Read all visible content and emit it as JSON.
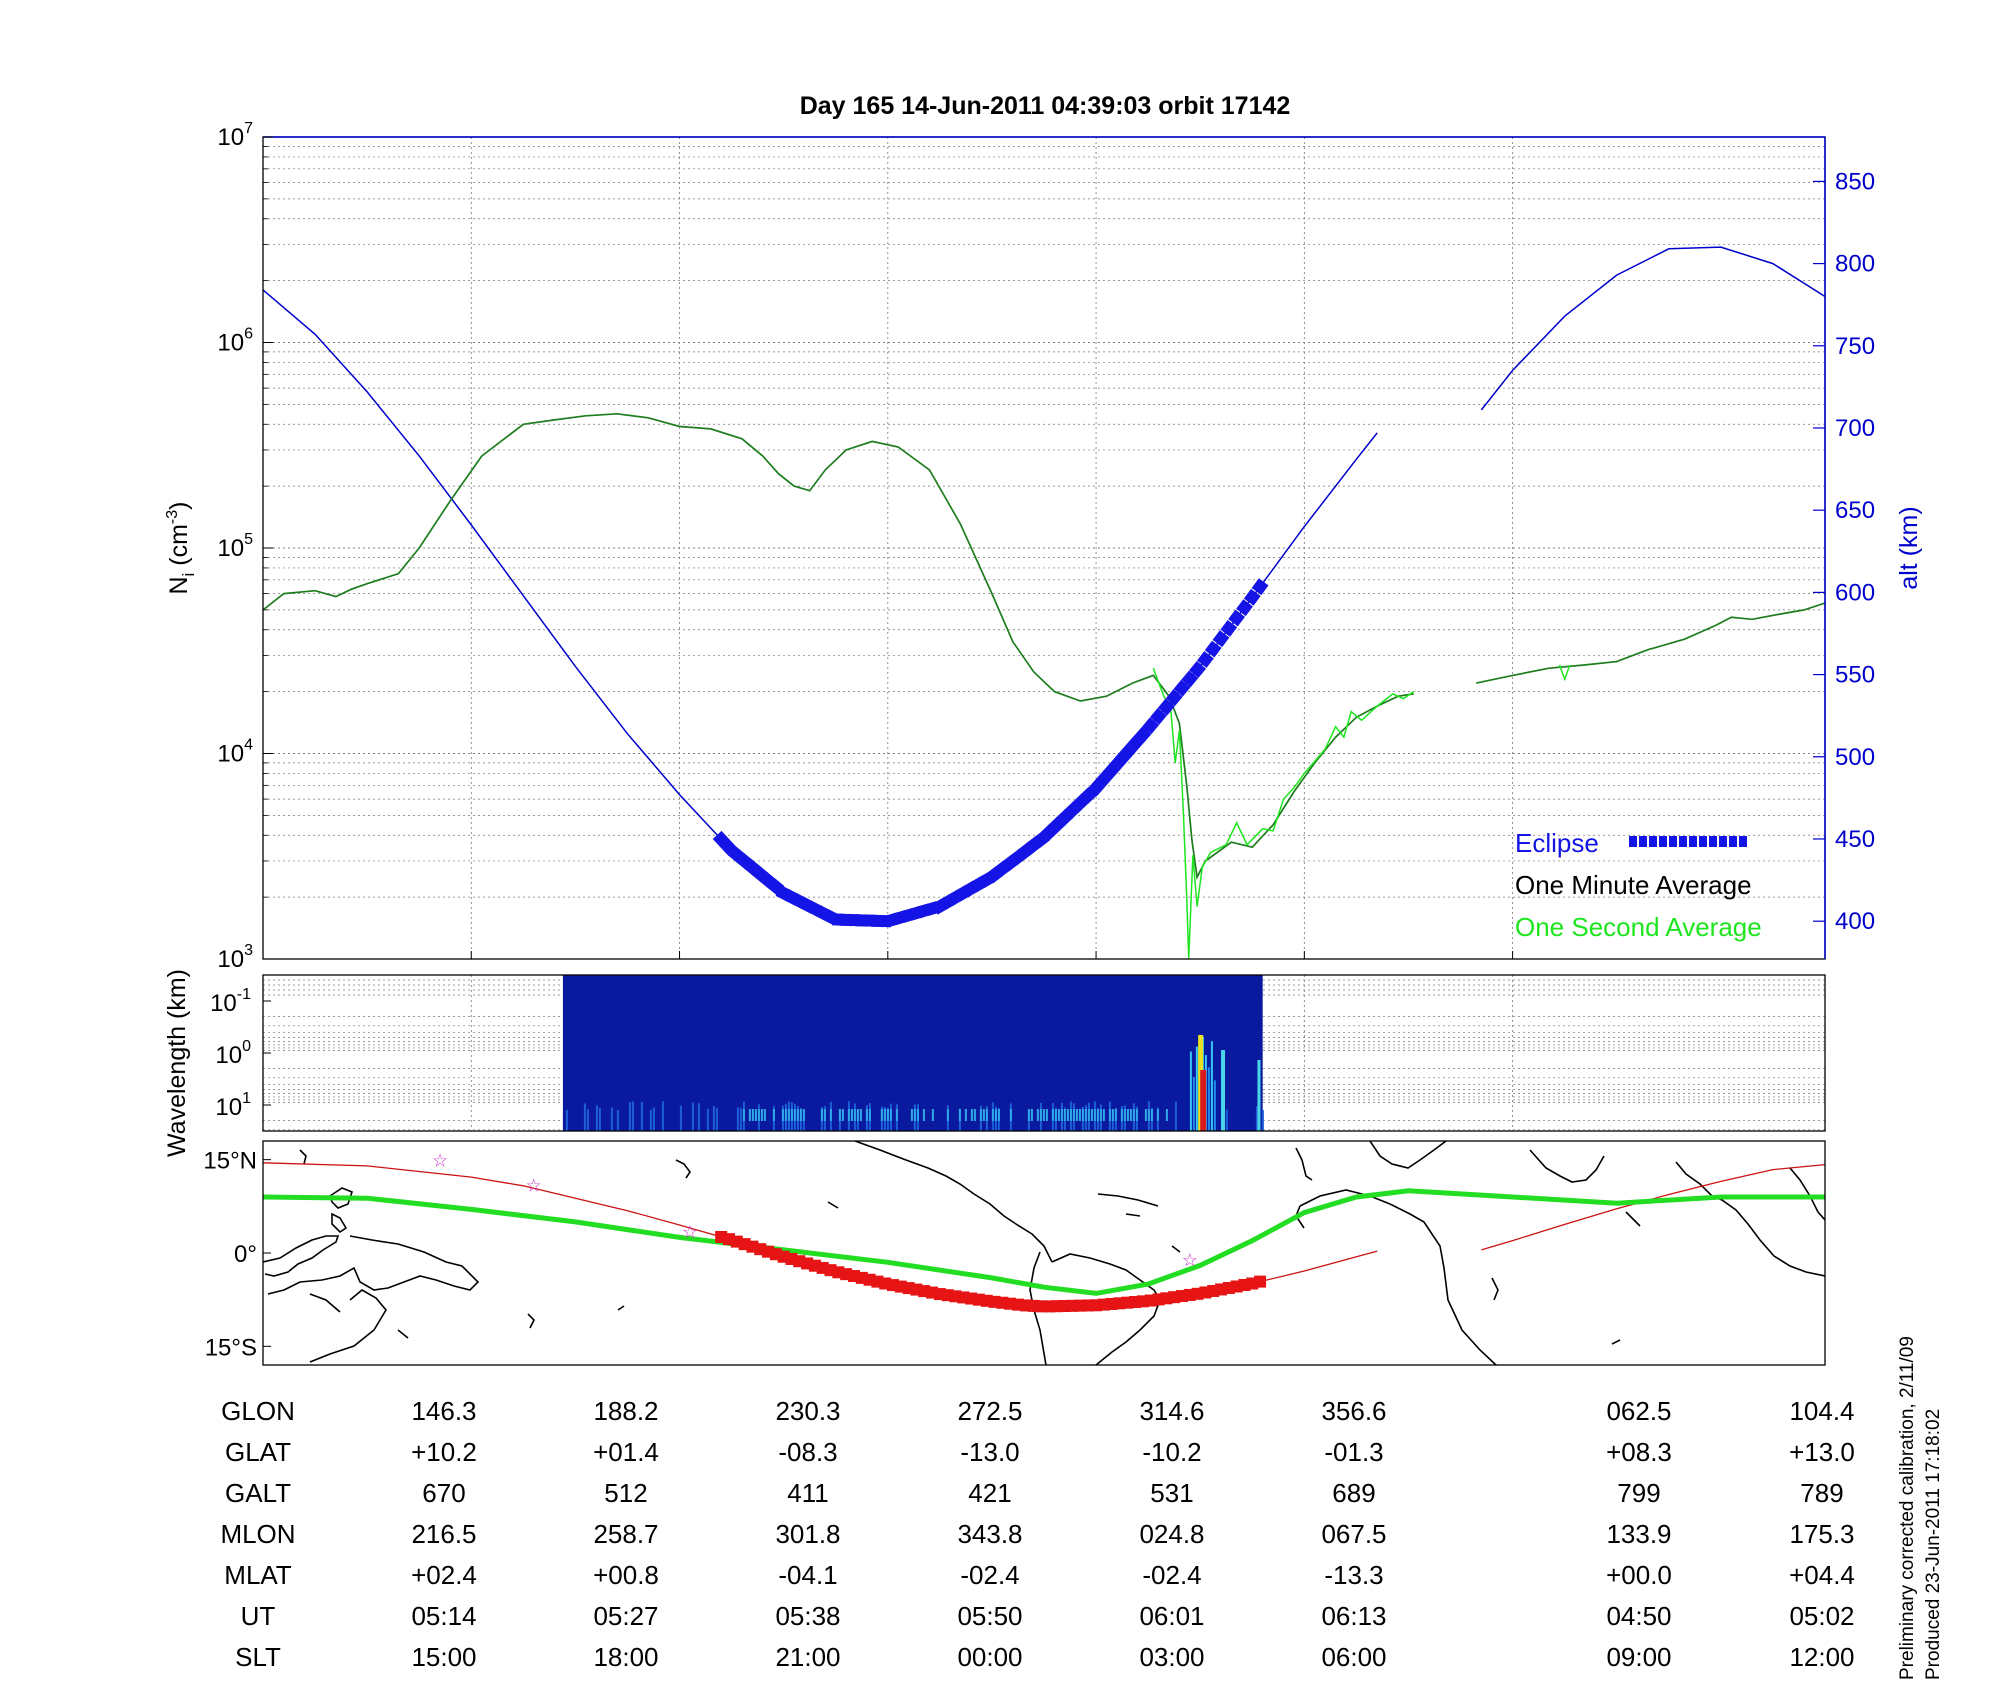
{
  "title": "Day 165  14-Jun-2011 04:39:03   orbit 17142",
  "colors": {
    "density": "#1e7d1e",
    "density_1s": "#1ee61e",
    "altitude": "#0000cc",
    "eclipse": "#1414e6",
    "track": "#cc1111",
    "footprint": "#22dd22",
    "eclipse_track": "#e61414",
    "star": "#cc33cc"
  },
  "chart_data": [
    {
      "type": "line",
      "panel": "density",
      "x_index_labels": [
        "146.3",
        "188.2",
        "230.3",
        "272.5",
        "314.6",
        "356.6",
        "062.5",
        "104.4"
      ],
      "ylabel_left": "N_i (cm^-3)",
      "ylim_left": [
        1000,
        10000000
      ],
      "yscale_left": "log",
      "yticks_left": [
        {
          "base": "10",
          "exp": "3"
        },
        {
          "base": "10",
          "exp": "4"
        },
        {
          "base": "10",
          "exp": "5"
        },
        {
          "base": "10",
          "exp": "6"
        },
        {
          "base": "10",
          "exp": "7"
        }
      ],
      "ylabel_right": "alt (km)",
      "ylim_right": [
        377,
        877
      ],
      "yticks_right": [
        "400",
        "450",
        "500",
        "550",
        "600",
        "650",
        "700",
        "750",
        "800",
        "850"
      ],
      "grid": true,
      "legend_placement": "bottom-right",
      "legend": [
        {
          "label": "Eclipse",
          "color": "#1414e6"
        },
        {
          "label": "One Minute Average",
          "color": "#000000"
        },
        {
          "label": "One Second Average",
          "color": "#1ee61e"
        }
      ],
      "series": [
        {
          "name": "One Minute Average",
          "role": "density",
          "points": [
            [
              0.0,
              50000
            ],
            [
              0.2,
              60000
            ],
            [
              0.5,
              62000
            ],
            [
              0.7,
              58000
            ],
            [
              0.85,
              63000
            ],
            [
              1.0,
              67000
            ],
            [
              1.3,
              75000
            ],
            [
              1.5,
              100000
            ],
            [
              1.8,
              170000
            ],
            [
              2.1,
              280000
            ],
            [
              2.5,
              400000
            ],
            [
              2.8,
              420000
            ],
            [
              3.1,
              440000
            ],
            [
              3.4,
              450000
            ],
            [
              3.7,
              430000
            ],
            [
              4.0,
              390000
            ],
            [
              4.3,
              380000
            ],
            [
              4.6,
              340000
            ],
            [
              4.8,
              280000
            ],
            [
              4.95,
              230000
            ],
            [
              5.1,
              200000
            ],
            [
              5.25,
              190000
            ],
            [
              5.4,
              240000
            ],
            [
              5.6,
              300000
            ],
            [
              5.85,
              330000
            ],
            [
              6.1,
              310000
            ],
            [
              6.4,
              240000
            ],
            [
              6.7,
              130000
            ],
            [
              7.0,
              60000
            ],
            [
              7.2,
              35000
            ],
            [
              7.4,
              25000
            ],
            [
              7.6,
              20000
            ],
            [
              7.85,
              18000
            ],
            [
              8.1,
              19000
            ],
            [
              8.35,
              22000
            ],
            [
              8.55,
              24000
            ],
            [
              8.7,
              19000
            ],
            [
              8.8,
              14000
            ],
            [
              8.87,
              7000
            ],
            [
              8.92,
              3800
            ],
            [
              8.97,
              2500
            ],
            [
              9.05,
              3000
            ],
            [
              9.3,
              3700
            ],
            [
              9.5,
              3500
            ],
            [
              9.7,
              4500
            ],
            [
              9.9,
              6500
            ],
            [
              10.1,
              9000
            ],
            [
              10.3,
              12000
            ],
            [
              10.5,
              15000
            ],
            [
              10.7,
              17000
            ],
            [
              10.9,
              19000
            ],
            [
              11.05,
              19500
            ],
            [
              null,
              null
            ],
            [
              11.65,
              22000
            ],
            [
              12.0,
              24000
            ],
            [
              12.35,
              26000
            ],
            [
              12.7,
              27000
            ],
            [
              13.0,
              28000
            ],
            [
              13.3,
              32000
            ],
            [
              13.65,
              36000
            ],
            [
              13.95,
              42000
            ],
            [
              14.1,
              46000
            ],
            [
              14.3,
              45000
            ],
            [
              14.6,
              48000
            ],
            [
              14.8,
              50000
            ],
            [
              15.0,
              54000
            ]
          ]
        },
        {
          "name": "One Second Average",
          "role": "density",
          "points": [
            [
              8.55,
              26000
            ],
            [
              8.65,
              19000
            ],
            [
              8.72,
              16000
            ],
            [
              8.76,
              9000
            ],
            [
              8.8,
              13000
            ],
            [
              8.84,
              5000
            ],
            [
              8.87,
              2000
            ],
            [
              8.89,
              1000
            ],
            [
              8.93,
              3200
            ],
            [
              8.97,
              1800
            ],
            [
              9.02,
              2800
            ],
            [
              9.1,
              3300
            ],
            [
              9.25,
              3600
            ],
            [
              9.35,
              4600
            ],
            [
              9.45,
              3600
            ],
            [
              9.6,
              4300
            ],
            [
              9.7,
              4200
            ],
            [
              9.8,
              6000
            ],
            [
              9.9,
              6800
            ],
            [
              10.0,
              8000
            ],
            [
              10.2,
              10500
            ],
            [
              10.3,
              13500
            ],
            [
              10.38,
              12000
            ],
            [
              10.45,
              16000
            ],
            [
              10.55,
              14500
            ],
            [
              10.7,
              17000
            ],
            [
              10.85,
              19500
            ],
            [
              10.95,
              18500
            ],
            [
              11.05,
              20000
            ],
            [
              null,
              null
            ],
            [
              12.45,
              27000
            ],
            [
              12.5,
              23000
            ],
            [
              12.55,
              27000
            ]
          ]
        },
        {
          "name": "",
          "role": "altitude",
          "points": [
            [
              0.0,
              784
            ],
            [
              0.5,
              757
            ],
            [
              1.0,
              722
            ],
            [
              1.5,
              683
            ],
            [
              2.0,
              641
            ],
            [
              2.5,
              598
            ],
            [
              3.0,
              555
            ],
            [
              3.5,
              514
            ],
            [
              4.0,
              477
            ],
            [
              4.5,
              443
            ],
            [
              5.0,
              417
            ],
            [
              5.5,
              401
            ],
            [
              6.0,
              400
            ],
            [
              6.5,
              409
            ],
            [
              7.0,
              427
            ],
            [
              7.5,
              451
            ],
            [
              8.0,
              481
            ],
            [
              8.5,
              517
            ],
            [
              9.0,
              555
            ],
            [
              9.5,
              597
            ],
            [
              10.0,
              640
            ],
            [
              10.5,
              681
            ],
            [
              10.7,
              697
            ],
            [
              null,
              null
            ],
            [
              11.7,
              711
            ],
            [
              12.0,
              735
            ],
            [
              12.5,
              768
            ],
            [
              13.0,
              793
            ],
            [
              13.5,
              809
            ],
            [
              14.0,
              810
            ],
            [
              14.5,
              800
            ],
            [
              15.0,
              780
            ]
          ]
        },
        {
          "name": "Eclipse",
          "role": "eclipse",
          "x_range": [
            4.4,
            9.6
          ]
        }
      ]
    },
    {
      "type": "heatmap",
      "panel": "spectrogram",
      "ylabel": "Wavelength (km)",
      "yticks": [
        {
          "base": "10",
          "exp": "-1"
        },
        {
          "base": "10",
          "exp": "0"
        },
        {
          "base": "10",
          "exp": "1"
        }
      ],
      "x_range": [
        2.88,
        9.6
      ],
      "colormap": "jet",
      "grid": true
    },
    {
      "type": "line",
      "panel": "map",
      "ylim": [
        -18,
        18
      ],
      "yticks": [
        "15°N",
        "0°",
        "15°S"
      ],
      "series": [
        {
          "name": "",
          "role": "orbit-track",
          "points": [
            [
              0.0,
              14.5
            ],
            [
              1.0,
              14.0
            ],
            [
              2.0,
              12.2
            ],
            [
              2.5,
              10.8
            ],
            [
              3.0,
              8.8
            ],
            [
              3.5,
              6.8
            ],
            [
              4.0,
              4.5
            ],
            [
              4.5,
              2.1
            ],
            [
              5.0,
              -0.6
            ],
            [
              5.5,
              -3.0
            ],
            [
              6.0,
              -5.0
            ],
            [
              6.5,
              -6.6
            ],
            [
              7.0,
              -7.8
            ],
            [
              7.3,
              -8.4
            ],
            [
              7.5,
              -8.6
            ],
            [
              8.0,
              -8.4
            ],
            [
              8.5,
              -7.7
            ],
            [
              9.0,
              -6.5
            ],
            [
              9.5,
              -4.9
            ],
            [
              10.0,
              -2.9
            ],
            [
              10.5,
              -0.6
            ],
            [
              10.7,
              0.3
            ],
            [
              null,
              null
            ],
            [
              11.7,
              0.5
            ],
            [
              12.0,
              2.0
            ],
            [
              12.5,
              4.6
            ],
            [
              13.0,
              7.1
            ],
            [
              13.5,
              9.4
            ],
            [
              14.0,
              11.5
            ],
            [
              14.5,
              13.4
            ],
            [
              15.0,
              14.2
            ]
          ]
        },
        {
          "name": "",
          "role": "magnetic-footprint",
          "points": [
            [
              0.0,
              9.0
            ],
            [
              1.0,
              8.8
            ],
            [
              2.0,
              7.0
            ],
            [
              3.0,
              5.0
            ],
            [
              4.0,
              2.5
            ],
            [
              5.0,
              0.5
            ],
            [
              6.0,
              -1.5
            ],
            [
              7.0,
              -4.0
            ],
            [
              7.5,
              -5.5
            ],
            [
              8.0,
              -6.5
            ],
            [
              8.5,
              -5.0
            ],
            [
              9.0,
              -2.0
            ],
            [
              9.5,
              2.0
            ],
            [
              10.0,
              6.5
            ],
            [
              10.5,
              9.0
            ],
            [
              11.0,
              10.0
            ],
            [
              12.0,
              9.0
            ],
            [
              13.0,
              8.0
            ],
            [
              13.5,
              8.5
            ],
            [
              14.0,
              9.0
            ],
            [
              15.0,
              9.0
            ]
          ]
        },
        {
          "name": "",
          "role": "eclipse-track",
          "x_range": [
            4.4,
            9.6
          ]
        }
      ],
      "stars": [
        [
          1.7,
          15.0
        ],
        [
          2.6,
          11.0
        ],
        [
          4.1,
          3.5
        ],
        [
          8.9,
          -1.0
        ]
      ]
    }
  ],
  "table": {
    "rows": [
      {
        "label": "GLON",
        "values": [
          "146.3",
          "188.2",
          "230.3",
          "272.5",
          "314.6",
          "356.6",
          "062.5",
          "104.4"
        ]
      },
      {
        "label": "GLAT",
        "values": [
          "+10.2",
          "+01.4",
          "-08.3",
          "-13.0",
          "-10.2",
          "-01.3",
          "+08.3",
          "+13.0"
        ]
      },
      {
        "label": "GALT",
        "values": [
          "670",
          "512",
          "411",
          "421",
          "531",
          "689",
          "799",
          "789"
        ]
      },
      {
        "label": "MLON",
        "values": [
          "216.5",
          "258.7",
          "301.8",
          "343.8",
          "024.8",
          "067.5",
          "133.9",
          "175.3"
        ]
      },
      {
        "label": "MLAT",
        "values": [
          "+02.4",
          "+00.8",
          "-04.1",
          "-02.4",
          "-02.4",
          "-13.3",
          "+00.0",
          "+04.4"
        ]
      },
      {
        "label": "UT",
        "values": [
          "05:14",
          "05:27",
          "05:38",
          "05:50",
          "06:01",
          "06:13",
          "04:50",
          "05:02"
        ]
      },
      {
        "label": "SLT",
        "values": [
          "15:00",
          "18:00",
          "21:00",
          "00:00",
          "03:00",
          "06:00",
          "09:00",
          "12:00"
        ]
      }
    ]
  },
  "side_notes": [
    "Preliminary corrected calibration, 2/11/09",
    "Produced 23-Jun-2011 17:18:02"
  ]
}
